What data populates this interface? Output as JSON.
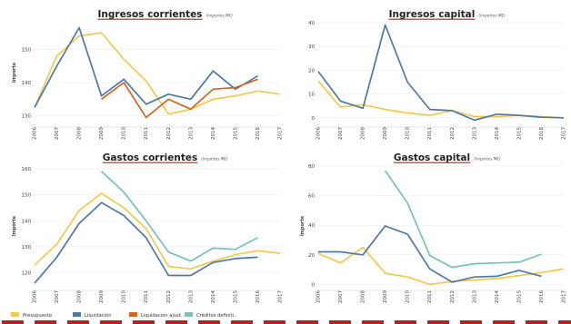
{
  "colors": {
    "presupuesto": "#f2c94c",
    "liquidacion": "#4e79a7",
    "liquidacion_ajust": "#d4661f",
    "creditos": "#76c0be",
    "title_underline": "#b22222",
    "dash": "#b22222",
    "axis": "#cccccc",
    "grid": "#e8e8e8"
  },
  "chart_data": [
    {
      "type": "line",
      "title": "Ingresos corrientes",
      "subtitle": "(importes M€)",
      "ylabel": "Importe",
      "ylim": [
        128,
        158
      ],
      "yticks": [
        130,
        140,
        150
      ],
      "x": [
        "2006",
        "2007",
        "2008",
        "2009",
        "2010",
        "2011",
        "2012",
        "2013",
        "2014",
        "2015",
        "2016",
        "2017"
      ],
      "series": [
        {
          "name": "Presupuesto",
          "color_key": "presupuesto",
          "values": [
            132.5,
            148,
            154,
            155,
            147,
            140.5,
            130.5,
            132,
            135,
            136,
            137.5,
            136.5
          ]
        },
        {
          "name": "Liquidación",
          "color_key": "liquidacion",
          "values": [
            132.5,
            145,
            156.5,
            136,
            141,
            133.5,
            136.5,
            135,
            143.5,
            138,
            142,
            null
          ]
        },
        {
          "name": "Liquidación ajust..",
          "color_key": "liquidacion_ajust",
          "values": [
            null,
            null,
            null,
            135,
            140,
            129.5,
            135,
            132,
            138,
            138.5,
            141,
            null
          ]
        }
      ]
    },
    {
      "type": "line",
      "title": "Ingresos capital",
      "subtitle": "(importes M€)",
      "ylabel": "",
      "ylim": [
        -2,
        40
      ],
      "yticks": [
        0,
        10,
        20,
        30,
        40
      ],
      "x": [
        "2006",
        "2007",
        "2008",
        "2009",
        "2010",
        "2011",
        "2012",
        "2013",
        "2014",
        "2015",
        "2016",
        "2017"
      ],
      "series": [
        {
          "name": "Presupuesto",
          "color_key": "presupuesto",
          "values": [
            15.5,
            4.5,
            5.5,
            3.5,
            2,
            1,
            3,
            0.5,
            0.5,
            1,
            0.5,
            0
          ]
        },
        {
          "name": "Liquidación",
          "color_key": "liquidacion",
          "values": [
            19.5,
            7,
            4,
            39,
            15,
            3.5,
            3,
            -1,
            1.5,
            1,
            0.2,
            0
          ]
        }
      ]
    },
    {
      "type": "line",
      "title": "Gastos corrientes",
      "subtitle": "(importes M€)",
      "ylabel": "Importe",
      "ylim": [
        115,
        161
      ],
      "yticks": [
        120,
        130,
        140,
        150,
        160
      ],
      "x": [
        "2006",
        "2007",
        "2008",
        "2009",
        "2010",
        "2011",
        "2012",
        "2013",
        "2014",
        "2015",
        "2016",
        "2017"
      ],
      "series": [
        {
          "name": "Presupuesto",
          "color_key": "presupuesto",
          "values": [
            123,
            131,
            144,
            150.5,
            145,
            137,
            122.5,
            121.5,
            124.5,
            127,
            128.5,
            127.5
          ]
        },
        {
          "name": "Liquidación",
          "color_key": "liquidacion",
          "values": [
            116,
            126,
            139,
            147,
            142,
            133.5,
            119,
            119,
            124,
            125.5,
            126,
            null
          ]
        },
        {
          "name": "Créditos definiti..",
          "color_key": "creditos",
          "values": [
            null,
            null,
            null,
            159,
            151,
            140,
            128,
            124.5,
            129.5,
            129,
            133.5,
            null
          ]
        }
      ]
    },
    {
      "type": "line",
      "title": "Gastos capital",
      "subtitle": "(importes M€)",
      "ylabel": "Importe",
      "ylim": [
        -1,
        80
      ],
      "yticks": [
        0,
        20,
        40,
        60,
        80
      ],
      "x": [
        "2006",
        "2007",
        "2008",
        "2009",
        "2010",
        "2011",
        "2012",
        "2013",
        "2014",
        "2015",
        "2016",
        "2017"
      ],
      "series": [
        {
          "name": "Presupuesto",
          "color_key": "presupuesto",
          "values": [
            21,
            14.5,
            25,
            7.5,
            5,
            0,
            2,
            3,
            4,
            6,
            8,
            10.5
          ]
        },
        {
          "name": "Liquidación",
          "color_key": "liquidacion",
          "values": [
            22,
            22,
            20,
            39.5,
            34,
            10.5,
            1.5,
            5,
            5.5,
            9.5,
            5.5,
            null
          ]
        },
        {
          "name": "Créditos definiti..",
          "color_key": "creditos",
          "values": [
            null,
            null,
            null,
            77,
            55,
            19.5,
            11.5,
            14,
            14.5,
            15,
            20.5,
            null
          ]
        }
      ]
    }
  ],
  "legend": [
    {
      "label": "Presupuesto",
      "color_key": "presupuesto"
    },
    {
      "label": "Liquidación",
      "color_key": "liquidacion"
    },
    {
      "label": "Liquidación ajust..",
      "color_key": "liquidacion_ajust"
    },
    {
      "label": "Créditos definiti..",
      "color_key": "creditos"
    }
  ]
}
